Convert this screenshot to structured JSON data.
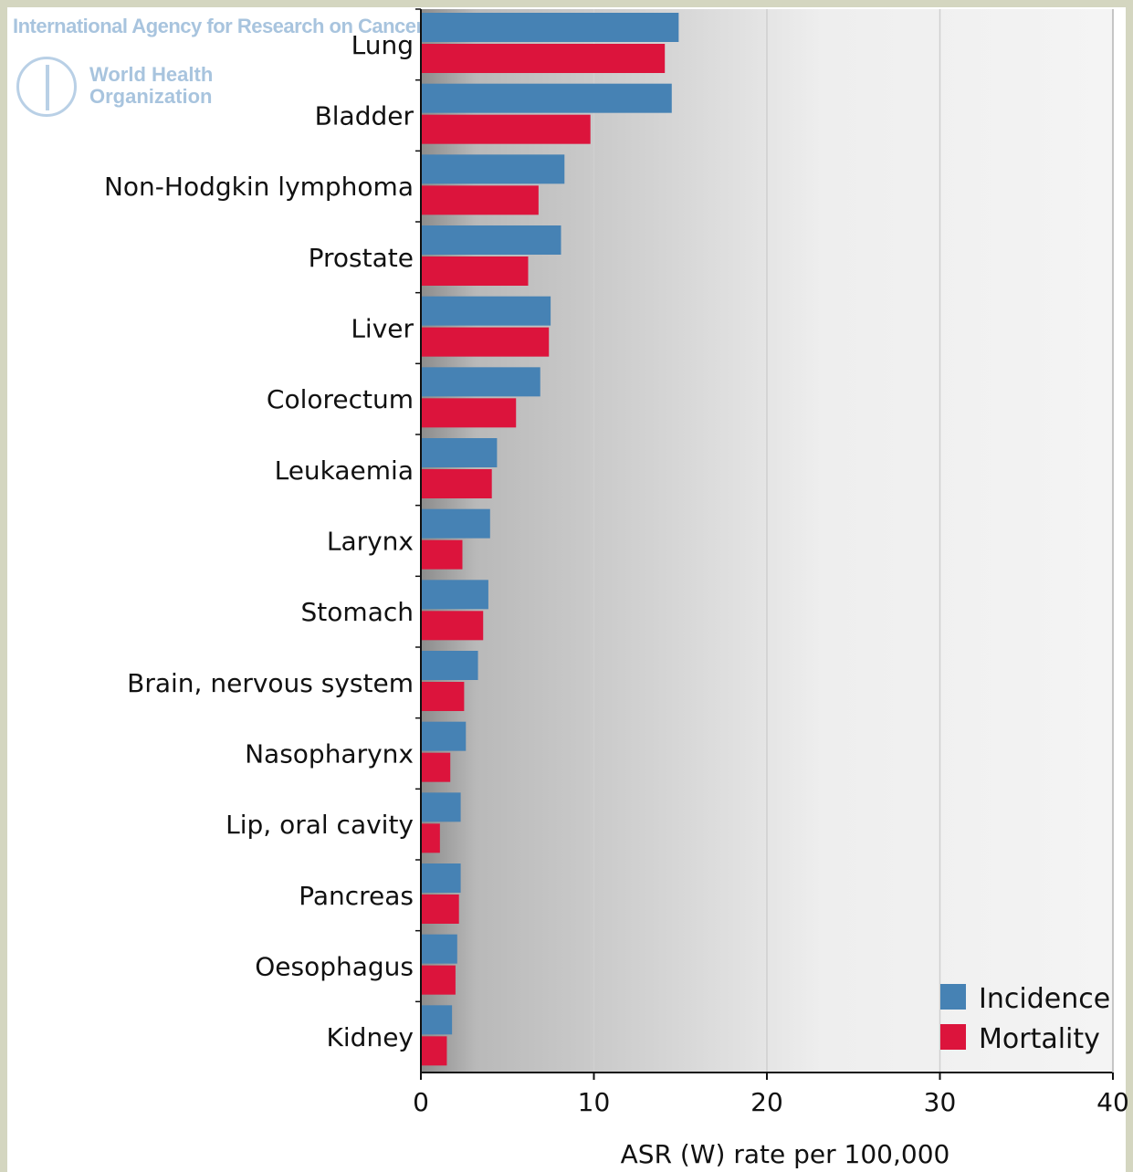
{
  "watermark": {
    "agency": "International Agency for Research on Cancer",
    "organization": "World Health Organization",
    "emblem": "who-emblem-icon"
  },
  "chart_data": {
    "type": "bar",
    "orientation": "horizontal",
    "categories": [
      "Lung",
      "Bladder",
      "Non-Hodgkin lymphoma",
      "Prostate",
      "Liver",
      "Colorectum",
      "Leukaemia",
      "Larynx",
      "Stomach",
      "Brain, nervous system",
      "Nasopharynx",
      "Lip, oral cavity",
      "Pancreas",
      "Oesophagus",
      "Kidney"
    ],
    "series": [
      {
        "name": "Incidence",
        "color": "#4682b4",
        "values": [
          14.9,
          14.5,
          8.3,
          8.1,
          7.5,
          6.9,
          4.4,
          4.0,
          3.9,
          3.3,
          2.6,
          2.3,
          2.3,
          2.1,
          1.8
        ]
      },
      {
        "name": "Mortality",
        "color": "#dc143c",
        "values": [
          14.1,
          9.8,
          6.8,
          6.2,
          7.4,
          5.5,
          4.1,
          2.4,
          3.6,
          2.5,
          1.7,
          1.1,
          2.2,
          2.0,
          1.5
        ]
      }
    ],
    "xlabel": "ASR (W) rate per 100,000",
    "xlim": [
      0,
      40
    ],
    "xticks": [
      "0",
      "10",
      "20",
      "30",
      "40"
    ],
    "grid": true,
    "legend_position": "bottom-right"
  }
}
